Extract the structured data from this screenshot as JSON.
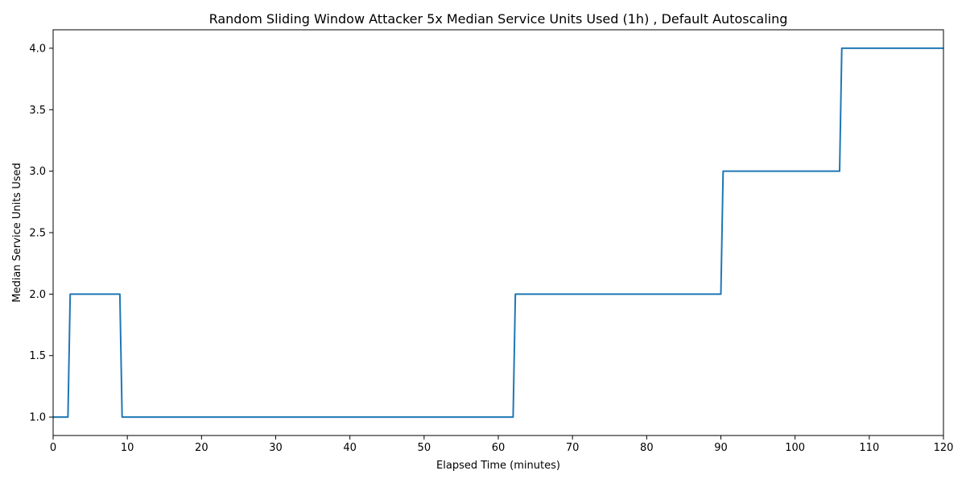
{
  "chart_data": {
    "type": "line",
    "title": "Random Sliding Window Attacker 5x Median Service Units Used (1h) , Default Autoscaling",
    "xlabel": "Elapsed Time (minutes)",
    "ylabel": "Median Service Units Used",
    "xlim": [
      0,
      120
    ],
    "ylim": [
      0.85,
      4.15
    ],
    "xticks": [
      0,
      10,
      20,
      30,
      40,
      50,
      60,
      70,
      80,
      90,
      100,
      110,
      120
    ],
    "yticks": [
      1.0,
      1.5,
      2.0,
      2.5,
      3.0,
      3.5,
      4.0
    ],
    "xtick_labels": [
      "0",
      "10",
      "20",
      "30",
      "40",
      "50",
      "60",
      "70",
      "80",
      "90",
      "100",
      "110",
      "120"
    ],
    "ytick_labels": [
      "1.0",
      "1.5",
      "2.0",
      "2.5",
      "3.0",
      "3.5",
      "4.0"
    ],
    "grid": false,
    "line_color": "#1f77b4",
    "series": [
      {
        "x": [
          0,
          2.0,
          2.3,
          9.0,
          9.3,
          62.0,
          62.3,
          90.0,
          90.3,
          106.0,
          106.3,
          120
        ],
        "y": [
          1,
          1,
          2,
          2,
          1,
          1,
          2,
          2,
          3,
          3,
          4,
          4
        ]
      }
    ]
  }
}
